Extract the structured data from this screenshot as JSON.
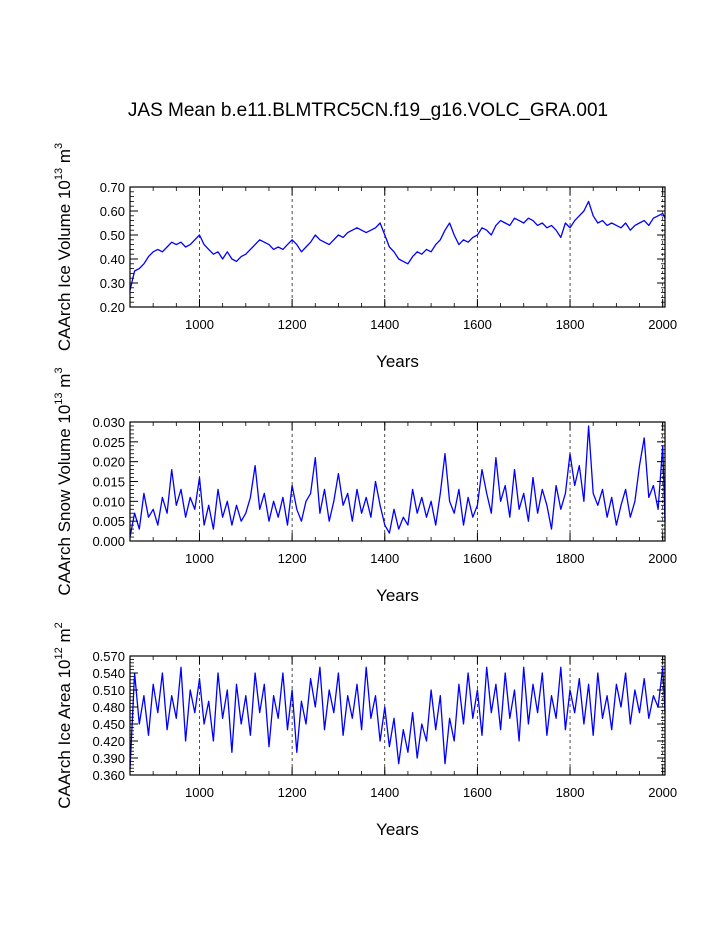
{
  "figure": {
    "title": "JAS Mean b.e11.BLMTRC5CN.f19_g16.VOLC_GRA.001",
    "line_color": "#0000ff",
    "axis_color": "#000000",
    "grid_color": "#000000"
  },
  "chart_data": [
    {
      "type": "line",
      "name": "ice-volume",
      "xlabel": "Years",
      "ylabel_text": "CAArch Ice Volume 10",
      "ylabel_exp": "13",
      "ylabel_unit": "m",
      "ylabel_unit_exp": "3",
      "xlim": [
        850,
        2005
      ],
      "ylim": [
        0.2,
        0.7
      ],
      "xticks": [
        1000,
        1200,
        1400,
        1600,
        1800,
        2000
      ],
      "yticks": [
        0.2,
        0.3,
        0.4,
        0.5,
        0.6,
        0.7
      ],
      "ytick_labels": [
        "0.20",
        "0.30",
        "0.40",
        "0.50",
        "0.60",
        "0.70"
      ],
      "grid_x": true,
      "series": {
        "name": "ice_volume",
        "x": [
          850,
          860,
          870,
          880,
          890,
          900,
          910,
          920,
          930,
          940,
          950,
          960,
          970,
          980,
          990,
          1000,
          1010,
          1020,
          1030,
          1040,
          1050,
          1060,
          1070,
          1080,
          1090,
          1100,
          1110,
          1120,
          1130,
          1140,
          1150,
          1160,
          1170,
          1180,
          1190,
          1200,
          1210,
          1220,
          1230,
          1240,
          1250,
          1260,
          1270,
          1280,
          1290,
          1300,
          1310,
          1320,
          1330,
          1340,
          1350,
          1360,
          1370,
          1380,
          1390,
          1400,
          1410,
          1420,
          1430,
          1440,
          1450,
          1460,
          1470,
          1480,
          1490,
          1500,
          1510,
          1520,
          1530,
          1540,
          1550,
          1560,
          1570,
          1580,
          1590,
          1600,
          1610,
          1620,
          1630,
          1640,
          1650,
          1660,
          1670,
          1680,
          1690,
          1700,
          1710,
          1720,
          1730,
          1740,
          1750,
          1760,
          1770,
          1780,
          1790,
          1800,
          1810,
          1820,
          1830,
          1840,
          1850,
          1860,
          1870,
          1880,
          1890,
          1900,
          1910,
          1920,
          1930,
          1940,
          1950,
          1960,
          1970,
          1980,
          1990,
          2000,
          2005
        ],
        "y": [
          0.27,
          0.35,
          0.36,
          0.38,
          0.41,
          0.43,
          0.44,
          0.43,
          0.45,
          0.47,
          0.46,
          0.47,
          0.45,
          0.46,
          0.48,
          0.5,
          0.46,
          0.44,
          0.42,
          0.43,
          0.4,
          0.43,
          0.4,
          0.39,
          0.41,
          0.42,
          0.44,
          0.46,
          0.48,
          0.47,
          0.46,
          0.44,
          0.45,
          0.44,
          0.46,
          0.48,
          0.46,
          0.43,
          0.45,
          0.47,
          0.5,
          0.48,
          0.47,
          0.46,
          0.48,
          0.5,
          0.49,
          0.51,
          0.52,
          0.53,
          0.52,
          0.51,
          0.52,
          0.53,
          0.55,
          0.5,
          0.45,
          0.43,
          0.4,
          0.39,
          0.38,
          0.41,
          0.43,
          0.42,
          0.44,
          0.43,
          0.46,
          0.48,
          0.52,
          0.55,
          0.5,
          0.46,
          0.48,
          0.47,
          0.49,
          0.5,
          0.53,
          0.52,
          0.5,
          0.54,
          0.56,
          0.55,
          0.54,
          0.57,
          0.56,
          0.55,
          0.57,
          0.56,
          0.54,
          0.55,
          0.53,
          0.54,
          0.52,
          0.49,
          0.55,
          0.53,
          0.56,
          0.58,
          0.6,
          0.64,
          0.58,
          0.55,
          0.56,
          0.54,
          0.55,
          0.54,
          0.53,
          0.55,
          0.52,
          0.54,
          0.55,
          0.56,
          0.54,
          0.57,
          0.58,
          0.59,
          0.57
        ]
      }
    },
    {
      "type": "line",
      "name": "snow-volume",
      "xlabel": "Years",
      "ylabel_text": "CAArch Snow Volume 10",
      "ylabel_exp": "13",
      "ylabel_unit": "m",
      "ylabel_unit_exp": "3",
      "xlim": [
        850,
        2005
      ],
      "ylim": [
        0.0,
        0.03
      ],
      "xticks": [
        1000,
        1200,
        1400,
        1600,
        1800,
        2000
      ],
      "yticks": [
        0.0,
        0.005,
        0.01,
        0.015,
        0.02,
        0.025,
        0.03
      ],
      "ytick_labels": [
        "0.000",
        "0.005",
        "0.010",
        "0.015",
        "0.020",
        "0.025",
        "0.030"
      ],
      "grid_x": true,
      "series": {
        "name": "snow_volume",
        "x": [
          850,
          860,
          870,
          880,
          890,
          900,
          910,
          920,
          930,
          940,
          950,
          960,
          970,
          980,
          990,
          1000,
          1010,
          1020,
          1030,
          1040,
          1050,
          1060,
          1070,
          1080,
          1090,
          1100,
          1110,
          1120,
          1130,
          1140,
          1150,
          1160,
          1170,
          1180,
          1190,
          1200,
          1210,
          1220,
          1230,
          1240,
          1250,
          1260,
          1270,
          1280,
          1290,
          1300,
          1310,
          1320,
          1330,
          1340,
          1350,
          1360,
          1370,
          1380,
          1390,
          1400,
          1410,
          1420,
          1430,
          1440,
          1450,
          1460,
          1470,
          1480,
          1490,
          1500,
          1510,
          1520,
          1530,
          1540,
          1550,
          1560,
          1570,
          1580,
          1590,
          1600,
          1610,
          1620,
          1630,
          1640,
          1650,
          1660,
          1670,
          1680,
          1690,
          1700,
          1710,
          1720,
          1730,
          1740,
          1750,
          1760,
          1770,
          1780,
          1790,
          1800,
          1810,
          1820,
          1830,
          1840,
          1850,
          1860,
          1870,
          1880,
          1890,
          1900,
          1910,
          1920,
          1930,
          1940,
          1950,
          1960,
          1970,
          1980,
          1990,
          2000,
          2005
        ],
        "y": [
          0.001,
          0.007,
          0.003,
          0.012,
          0.006,
          0.008,
          0.004,
          0.011,
          0.007,
          0.018,
          0.009,
          0.013,
          0.006,
          0.011,
          0.008,
          0.016,
          0.004,
          0.009,
          0.003,
          0.013,
          0.006,
          0.01,
          0.004,
          0.009,
          0.005,
          0.007,
          0.011,
          0.019,
          0.008,
          0.012,
          0.005,
          0.01,
          0.006,
          0.011,
          0.004,
          0.014,
          0.008,
          0.005,
          0.01,
          0.012,
          0.021,
          0.007,
          0.013,
          0.005,
          0.01,
          0.017,
          0.009,
          0.012,
          0.005,
          0.013,
          0.007,
          0.011,
          0.006,
          0.015,
          0.009,
          0.004,
          0.002,
          0.008,
          0.003,
          0.006,
          0.004,
          0.013,
          0.007,
          0.011,
          0.006,
          0.01,
          0.004,
          0.012,
          0.022,
          0.01,
          0.007,
          0.013,
          0.004,
          0.011,
          0.006,
          0.009,
          0.018,
          0.012,
          0.007,
          0.021,
          0.01,
          0.014,
          0.006,
          0.018,
          0.008,
          0.012,
          0.005,
          0.016,
          0.007,
          0.013,
          0.009,
          0.003,
          0.014,
          0.008,
          0.012,
          0.022,
          0.014,
          0.019,
          0.01,
          0.029,
          0.012,
          0.009,
          0.013,
          0.006,
          0.011,
          0.004,
          0.009,
          0.013,
          0.006,
          0.01,
          0.019,
          0.026,
          0.011,
          0.014,
          0.008,
          0.024,
          0.005
        ]
      }
    },
    {
      "type": "line",
      "name": "ice-area",
      "xlabel": "Years",
      "ylabel_text": "CAArch Ice Area 10",
      "ylabel_exp": "12",
      "ylabel_unit": "m",
      "ylabel_unit_exp": "2",
      "xlim": [
        850,
        2005
      ],
      "ylim": [
        0.36,
        0.57
      ],
      "xticks": [
        1000,
        1200,
        1400,
        1600,
        1800,
        2000
      ],
      "yticks": [
        0.36,
        0.39,
        0.42,
        0.45,
        0.48,
        0.51,
        0.54,
        0.57
      ],
      "ytick_labels": [
        "0.360",
        "0.390",
        "0.420",
        "0.450",
        "0.480",
        "0.510",
        "0.540",
        "0.570"
      ],
      "grid_x": true,
      "series": {
        "name": "ice_area",
        "x": [
          850,
          860,
          870,
          880,
          890,
          900,
          910,
          920,
          930,
          940,
          950,
          960,
          970,
          980,
          990,
          1000,
          1010,
          1020,
          1030,
          1040,
          1050,
          1060,
          1070,
          1080,
          1090,
          1100,
          1110,
          1120,
          1130,
          1140,
          1150,
          1160,
          1170,
          1180,
          1190,
          1200,
          1210,
          1220,
          1230,
          1240,
          1250,
          1260,
          1270,
          1280,
          1290,
          1300,
          1310,
          1320,
          1330,
          1340,
          1350,
          1360,
          1370,
          1380,
          1390,
          1400,
          1410,
          1420,
          1430,
          1440,
          1450,
          1460,
          1470,
          1480,
          1490,
          1500,
          1510,
          1520,
          1530,
          1540,
          1550,
          1560,
          1570,
          1580,
          1590,
          1600,
          1610,
          1620,
          1630,
          1640,
          1650,
          1660,
          1670,
          1680,
          1690,
          1700,
          1710,
          1720,
          1730,
          1740,
          1750,
          1760,
          1770,
          1780,
          1790,
          1800,
          1810,
          1820,
          1830,
          1840,
          1850,
          1860,
          1870,
          1880,
          1890,
          1900,
          1910,
          1920,
          1930,
          1940,
          1950,
          1960,
          1970,
          1980,
          1990,
          2000,
          2005
        ],
        "y": [
          0.37,
          0.54,
          0.45,
          0.5,
          0.43,
          0.52,
          0.47,
          0.54,
          0.44,
          0.5,
          0.46,
          0.55,
          0.42,
          0.51,
          0.47,
          0.53,
          0.45,
          0.49,
          0.42,
          0.54,
          0.46,
          0.51,
          0.4,
          0.52,
          0.45,
          0.5,
          0.43,
          0.54,
          0.47,
          0.52,
          0.41,
          0.5,
          0.46,
          0.54,
          0.44,
          0.51,
          0.4,
          0.49,
          0.45,
          0.53,
          0.48,
          0.55,
          0.44,
          0.51,
          0.47,
          0.54,
          0.43,
          0.5,
          0.46,
          0.52,
          0.44,
          0.55,
          0.46,
          0.5,
          0.42,
          0.48,
          0.41,
          0.46,
          0.38,
          0.44,
          0.4,
          0.47,
          0.39,
          0.45,
          0.42,
          0.51,
          0.44,
          0.5,
          0.38,
          0.46,
          0.42,
          0.52,
          0.45,
          0.54,
          0.46,
          0.51,
          0.43,
          0.55,
          0.47,
          0.52,
          0.44,
          0.54,
          0.46,
          0.51,
          0.42,
          0.55,
          0.45,
          0.52,
          0.47,
          0.54,
          0.43,
          0.5,
          0.46,
          0.55,
          0.44,
          0.51,
          0.47,
          0.53,
          0.45,
          0.52,
          0.43,
          0.54,
          0.46,
          0.5,
          0.44,
          0.52,
          0.48,
          0.54,
          0.45,
          0.51,
          0.47,
          0.53,
          0.46,
          0.5,
          0.48,
          0.55,
          0.47
        ]
      }
    }
  ]
}
